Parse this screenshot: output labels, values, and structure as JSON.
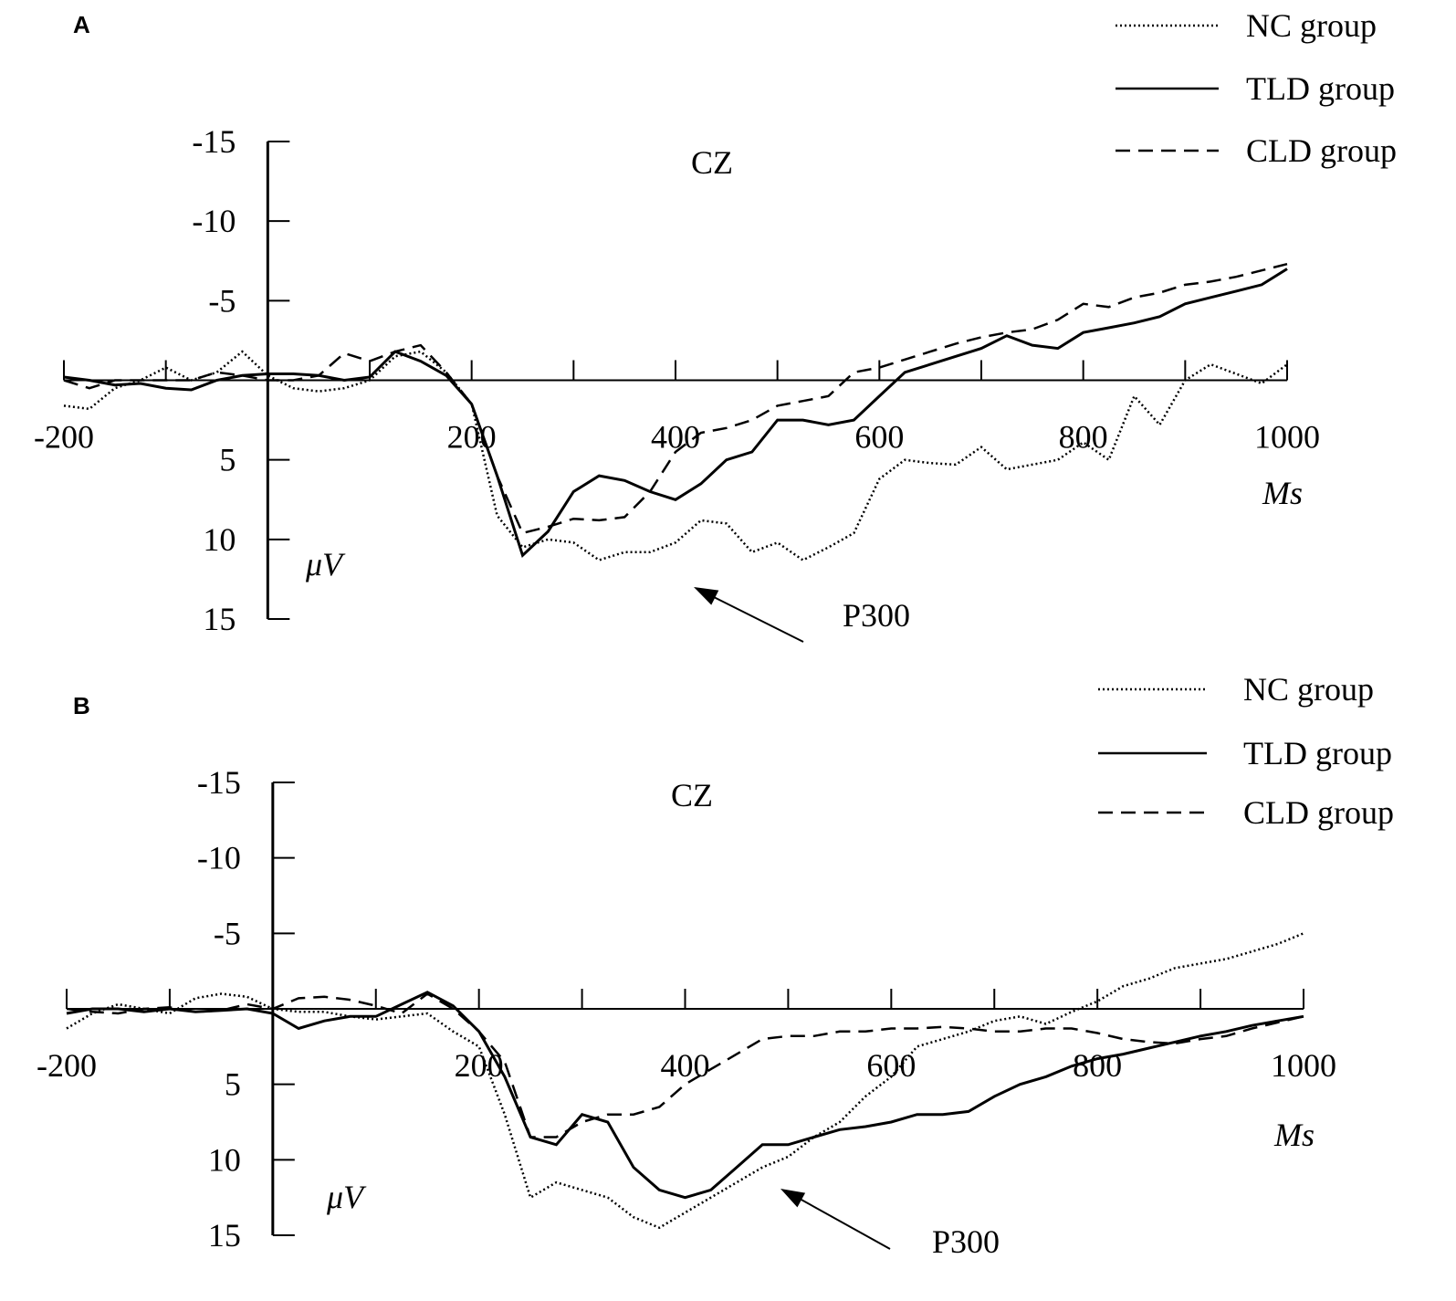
{
  "chart_data": [
    {
      "type": "line",
      "panel": "A",
      "title": "CZ",
      "x_label": "Ms",
      "y_label": "μV",
      "annotation": "P300",
      "xlim": [
        -200,
        1000
      ],
      "ylim": [
        15,
        -15
      ],
      "xticks": [
        -200,
        200,
        400,
        600,
        800,
        1000
      ],
      "xticks_minor": [
        -100,
        0,
        100,
        300,
        500,
        700,
        900
      ],
      "yticks": [
        -15,
        -10,
        -5,
        5,
        10,
        15
      ],
      "x": [
        -200,
        -175,
        -150,
        -125,
        -100,
        -75,
        -50,
        -25,
        0,
        25,
        50,
        75,
        100,
        125,
        150,
        175,
        200,
        225,
        250,
        275,
        300,
        325,
        350,
        375,
        400,
        425,
        450,
        475,
        500,
        525,
        550,
        575,
        600,
        625,
        650,
        675,
        700,
        725,
        750,
        775,
        800,
        825,
        850,
        875,
        900,
        925,
        950,
        975,
        1000
      ],
      "series": [
        {
          "name": "NC group",
          "color": "#000000",
          "dash": "dotted",
          "values": [
            1.6,
            1.8,
            0.5,
            0,
            -0.8,
            0,
            -0.5,
            -1.8,
            -0.3,
            0.5,
            0.7,
            0.5,
            0,
            -1.5,
            -1.8,
            -0.5,
            1.5,
            8.5,
            10.5,
            10,
            10.2,
            11.3,
            10.8,
            10.8,
            10.2,
            8.8,
            9,
            10.8,
            10.2,
            11.3,
            10.5,
            9.6,
            6.2,
            5,
            5.2,
            5.3,
            4.2,
            5.6,
            5.3,
            5,
            3.9,
            5,
            1,
            2.8,
            0,
            -1,
            -0.4,
            0.2,
            -1
          ]
        },
        {
          "name": "TLD group",
          "color": "#000000",
          "dash": "solid",
          "values": [
            -0.2,
            0,
            0.3,
            0.2,
            0.5,
            0.6,
            0,
            -0.3,
            -0.4,
            -0.4,
            -0.3,
            0,
            -0.2,
            -1.8,
            -1.2,
            -0.3,
            1.5,
            6,
            11,
            9.5,
            7,
            6,
            6.3,
            7,
            7.5,
            6.5,
            5,
            4.5,
            2.5,
            2.5,
            2.8,
            2.5,
            1,
            -0.5,
            -1,
            -1.5,
            -2,
            -2.8,
            -2.2,
            -2,
            -3,
            -3.3,
            -3.6,
            -4,
            -4.8,
            -5.2,
            -5.6,
            -6,
            -7
          ]
        },
        {
          "name": "CLD group",
          "color": "#000000",
          "dash": "dashed",
          "values": [
            0,
            0.5,
            0,
            0,
            0,
            0,
            -0.5,
            -0.3,
            0,
            0,
            -0.3,
            -1.7,
            -1.2,
            -1.8,
            -2.2,
            -0.5,
            1.5,
            6,
            9.6,
            9.2,
            8.7,
            8.8,
            8.6,
            7,
            4.5,
            3.3,
            3,
            2.5,
            1.6,
            1.3,
            1,
            -0.5,
            -0.8,
            -1.3,
            -1.8,
            -2.3,
            -2.7,
            -3,
            -3.2,
            -3.8,
            -4.8,
            -4.6,
            -5.2,
            -5.5,
            -6,
            -6.2,
            -6.5,
            -6.9,
            -7.3
          ]
        }
      ]
    },
    {
      "type": "line",
      "panel": "B",
      "title": "CZ",
      "x_label": "Ms",
      "y_label": "μV",
      "annotation": "P300",
      "xlim": [
        -200,
        1000
      ],
      "ylim": [
        15,
        -15
      ],
      "xticks": [
        -200,
        200,
        400,
        600,
        800,
        1000
      ],
      "xticks_minor": [
        -100,
        0,
        100,
        300,
        500,
        700,
        900
      ],
      "yticks": [
        -15,
        -10,
        -5,
        5,
        10,
        15
      ],
      "x": [
        -200,
        -175,
        -150,
        -125,
        -100,
        -75,
        -50,
        -25,
        0,
        25,
        50,
        75,
        100,
        125,
        150,
        175,
        200,
        225,
        250,
        275,
        300,
        325,
        350,
        375,
        400,
        425,
        450,
        475,
        500,
        525,
        550,
        575,
        600,
        625,
        650,
        675,
        700,
        725,
        750,
        775,
        800,
        825,
        850,
        875,
        900,
        925,
        950,
        975,
        1000
      ],
      "series": [
        {
          "name": "NC group",
          "color": "#000000",
          "dash": "dotted",
          "values": [
            1.3,
            0.3,
            -0.3,
            0,
            0.3,
            -0.7,
            -1,
            -0.8,
            0,
            0.2,
            0.2,
            0.5,
            0.7,
            0.5,
            0.3,
            1.5,
            2.5,
            7,
            12.5,
            11.5,
            12,
            12.5,
            13.8,
            14.5,
            13.5,
            12.5,
            11.5,
            10.5,
            9.8,
            8.5,
            7.5,
            5.8,
            4.5,
            2.5,
            2,
            1.5,
            0.8,
            0.5,
            1,
            0.2,
            -0.5,
            -1.5,
            -2,
            -2.7,
            -3,
            -3.3,
            -3.8,
            -4.3,
            -5
          ]
        },
        {
          "name": "TLD group",
          "color": "#000000",
          "dash": "solid",
          "values": [
            0.3,
            0,
            0,
            0.2,
            0,
            0.2,
            0.1,
            0,
            0.3,
            1.3,
            0.8,
            0.5,
            0.5,
            -0.3,
            -1.1,
            -0.2,
            1.5,
            4.5,
            8.5,
            9,
            7,
            7.5,
            10.5,
            12,
            12.5,
            12,
            10.5,
            9,
            9,
            8.5,
            8,
            7.8,
            7.5,
            7,
            7,
            6.8,
            5.8,
            5,
            4.5,
            3.8,
            3.3,
            3,
            2.6,
            2.2,
            1.8,
            1.5,
            1.1,
            0.8,
            0.5
          ]
        },
        {
          "name": "CLD group",
          "color": "#000000",
          "dash": "dashed",
          "values": [
            0,
            0.2,
            0.3,
            0,
            -0.1,
            0.2,
            0.1,
            -0.3,
            0,
            -0.7,
            -0.8,
            -0.6,
            -0.2,
            0.3,
            -1,
            0,
            1.5,
            3.5,
            8.5,
            8.5,
            7.5,
            7,
            7,
            6.5,
            5,
            4,
            3,
            2,
            1.8,
            1.8,
            1.5,
            1.5,
            1.3,
            1.3,
            1.2,
            1.3,
            1.5,
            1.5,
            1.3,
            1.3,
            1.6,
            2,
            2.2,
            2.3,
            2,
            1.8,
            1.3,
            0.9,
            0.5
          ]
        }
      ]
    }
  ]
}
